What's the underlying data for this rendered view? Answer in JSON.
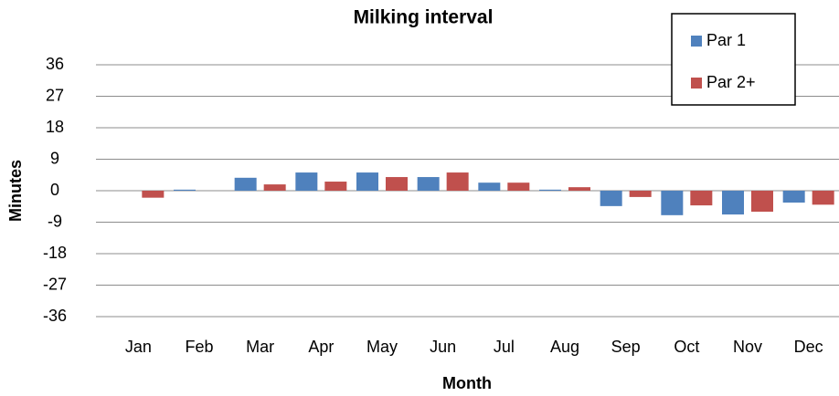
{
  "chart_data": {
    "type": "bar",
    "title": "Milking interval",
    "x_label": "Month",
    "y_label": "Minutes",
    "categories": [
      "Jan",
      "Feb",
      "Mar",
      "Apr",
      "May",
      "Jun",
      "Jul",
      "Aug",
      "Sep",
      "Oct",
      "Nov",
      "Dec"
    ],
    "series": [
      {
        "name": "Par 1",
        "color": "#4f81bd",
        "values": [
          0,
          0.3,
          3.7,
          5.2,
          5.2,
          3.9,
          2.3,
          0.3,
          -4.4,
          -7,
          -6.8,
          -3.4
        ]
      },
      {
        "name": "Par 2+",
        "color": "#c0504d",
        "values": [
          -2,
          0,
          1.8,
          2.6,
          3.9,
          5.2,
          2.3,
          1,
          -1.8,
          -4.2,
          -6,
          -4
        ]
      }
    ],
    "ylim": [
      -36,
      36
    ],
    "yticks": [
      -36,
      -27,
      -18,
      -9,
      0,
      9,
      18,
      27,
      36
    ],
    "grid": true,
    "legend": "top-right"
  }
}
